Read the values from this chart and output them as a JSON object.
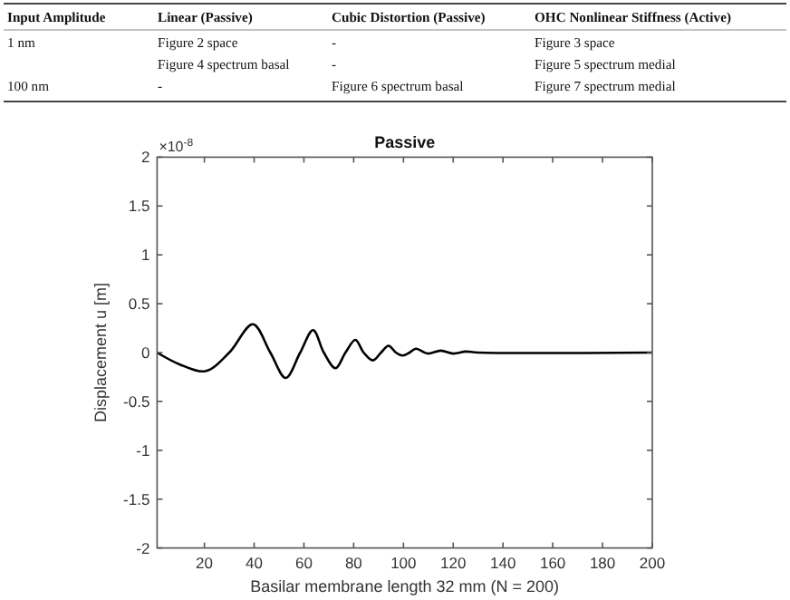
{
  "chart_data": {
    "type": "line",
    "title": "Passive",
    "xlabel": "Basilar membrane length 32 mm  (N = 200)",
    "ylabel": "Displacement u [m]",
    "annotations": [
      "×10$^{-8}$",
      "Input Amplitude",
      "Linear (Passive)",
      "Cubic Distortion (Passive)",
      "OHC Nonlinear Stiffness (Active)",
      "1 nm",
      "Figure 2 space",
      "-",
      "Figure 3 space",
      "Figure 4 spectrum basal",
      "-",
      "Figure 5 spectrum medial",
      "100 nm",
      "-",
      "Figure 6 spectrum basal",
      "Figure 7 spectrum medial"
    ],
    "x": [
      1,
      10,
      20.4,
      30,
      39.5,
      46.5,
      52.7,
      58.5,
      63.7,
      68,
      72.7,
      76.7,
      80.7,
      84,
      87.7,
      91,
      94,
      97,
      99.6,
      102.5,
      105,
      109.6,
      115,
      120,
      125,
      130,
      200
    ],
    "series": [
      {
        "color": "#000000",
        "values": [
          0,
          -0.12,
          -0.19,
          0,
          0.29,
          0,
          -0.26,
          0,
          0.23,
          0,
          -0.16,
          0,
          0.13,
          0,
          -0.08,
          0,
          0.07,
          0,
          -0.03,
          0,
          0.04,
          -0.01,
          0.02,
          -0.01,
          0.01,
          0,
          0
        ]
      }
    ],
    "xlim": [
      1,
      200
    ],
    "xticks": [
      20,
      40,
      60,
      80,
      100,
      120,
      140,
      160,
      180,
      200
    ],
    "ylim": [
      -2,
      2
    ],
    "yticks": [
      -2,
      -1.5,
      -1,
      -0.5,
      0,
      0.5,
      1,
      1.5,
      2
    ],
    "grid": false,
    "line_style": "solid"
  }
}
